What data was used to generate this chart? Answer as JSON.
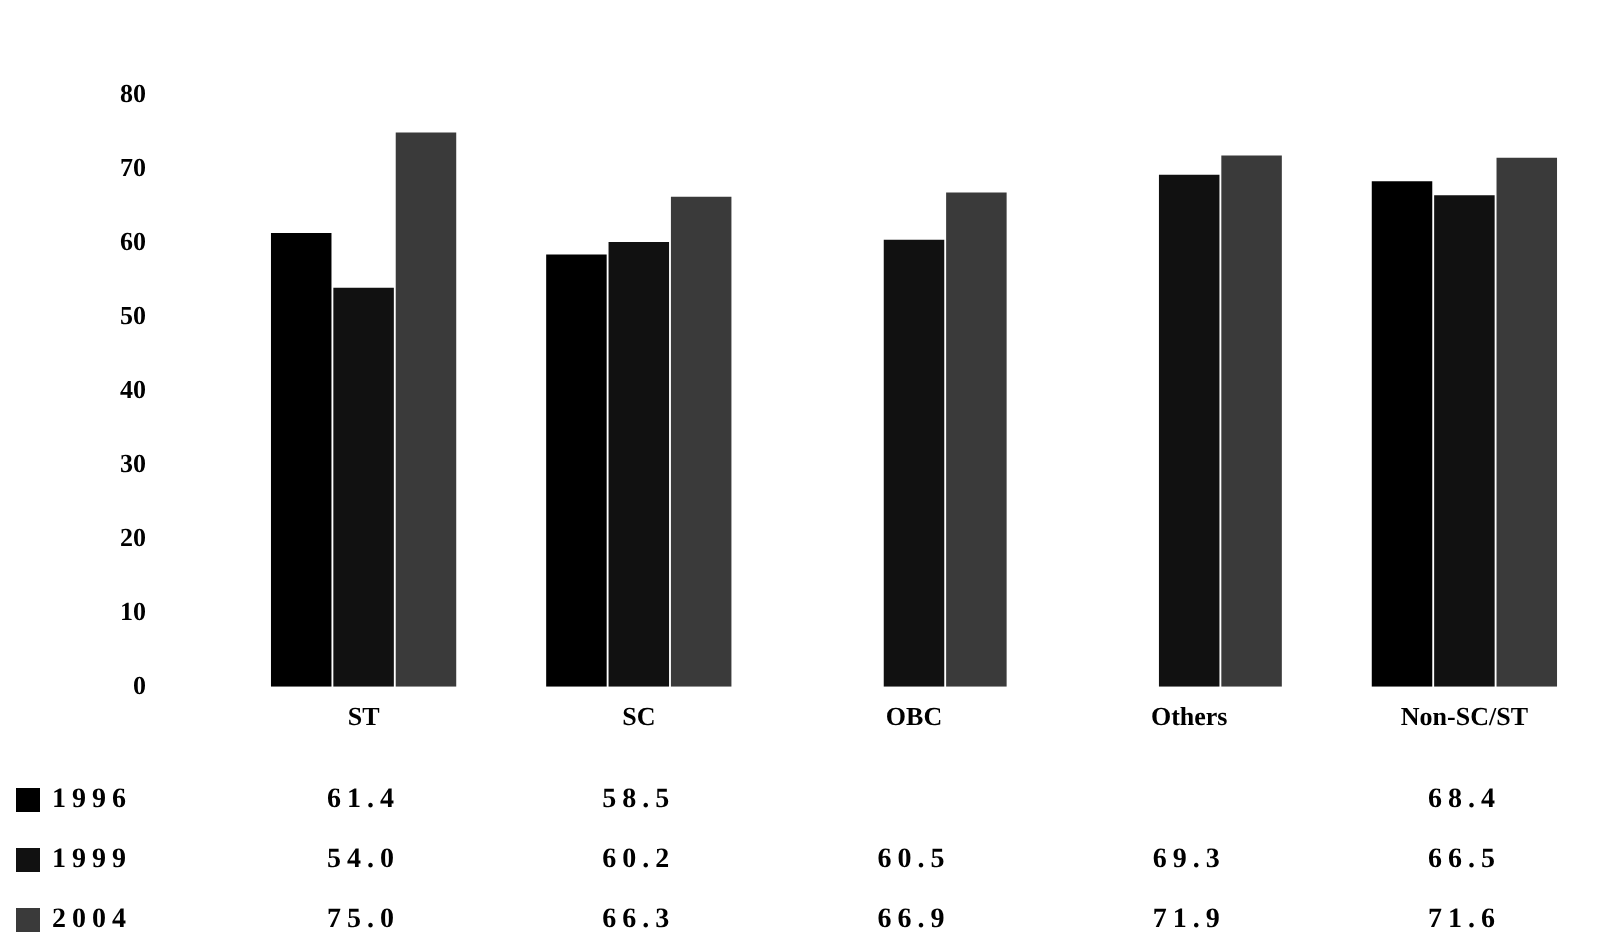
{
  "chart_data": {
    "type": "bar",
    "categories": [
      "ST",
      "SC",
      "OBC",
      "Others",
      "Non-SC/ST"
    ],
    "series": [
      {
        "name": "1996",
        "color": "#000000",
        "values": [
          61.4,
          58.5,
          null,
          null,
          68.4
        ],
        "value_labels": [
          "61.4",
          "58.5",
          null,
          null,
          "68.4"
        ]
      },
      {
        "name": "1999",
        "color": "#111111",
        "values": [
          54.0,
          60.2,
          60.5,
          69.3,
          66.5
        ],
        "value_labels": [
          "54.0",
          "60.2",
          "60.5",
          "69.3",
          "66.5"
        ]
      },
      {
        "name": "2004",
        "color": "#3a3a3a",
        "values": [
          75.0,
          66.3,
          66.9,
          71.9,
          71.6
        ],
        "value_labels": [
          "75.0",
          "66.3",
          "66.9",
          "71.9",
          "71.6"
        ]
      }
    ],
    "ylim": [
      0,
      80
    ],
    "yticks": [
      0,
      10,
      20,
      30,
      40,
      50,
      60,
      70,
      80
    ],
    "grid": false,
    "legend": "bottom left"
  }
}
